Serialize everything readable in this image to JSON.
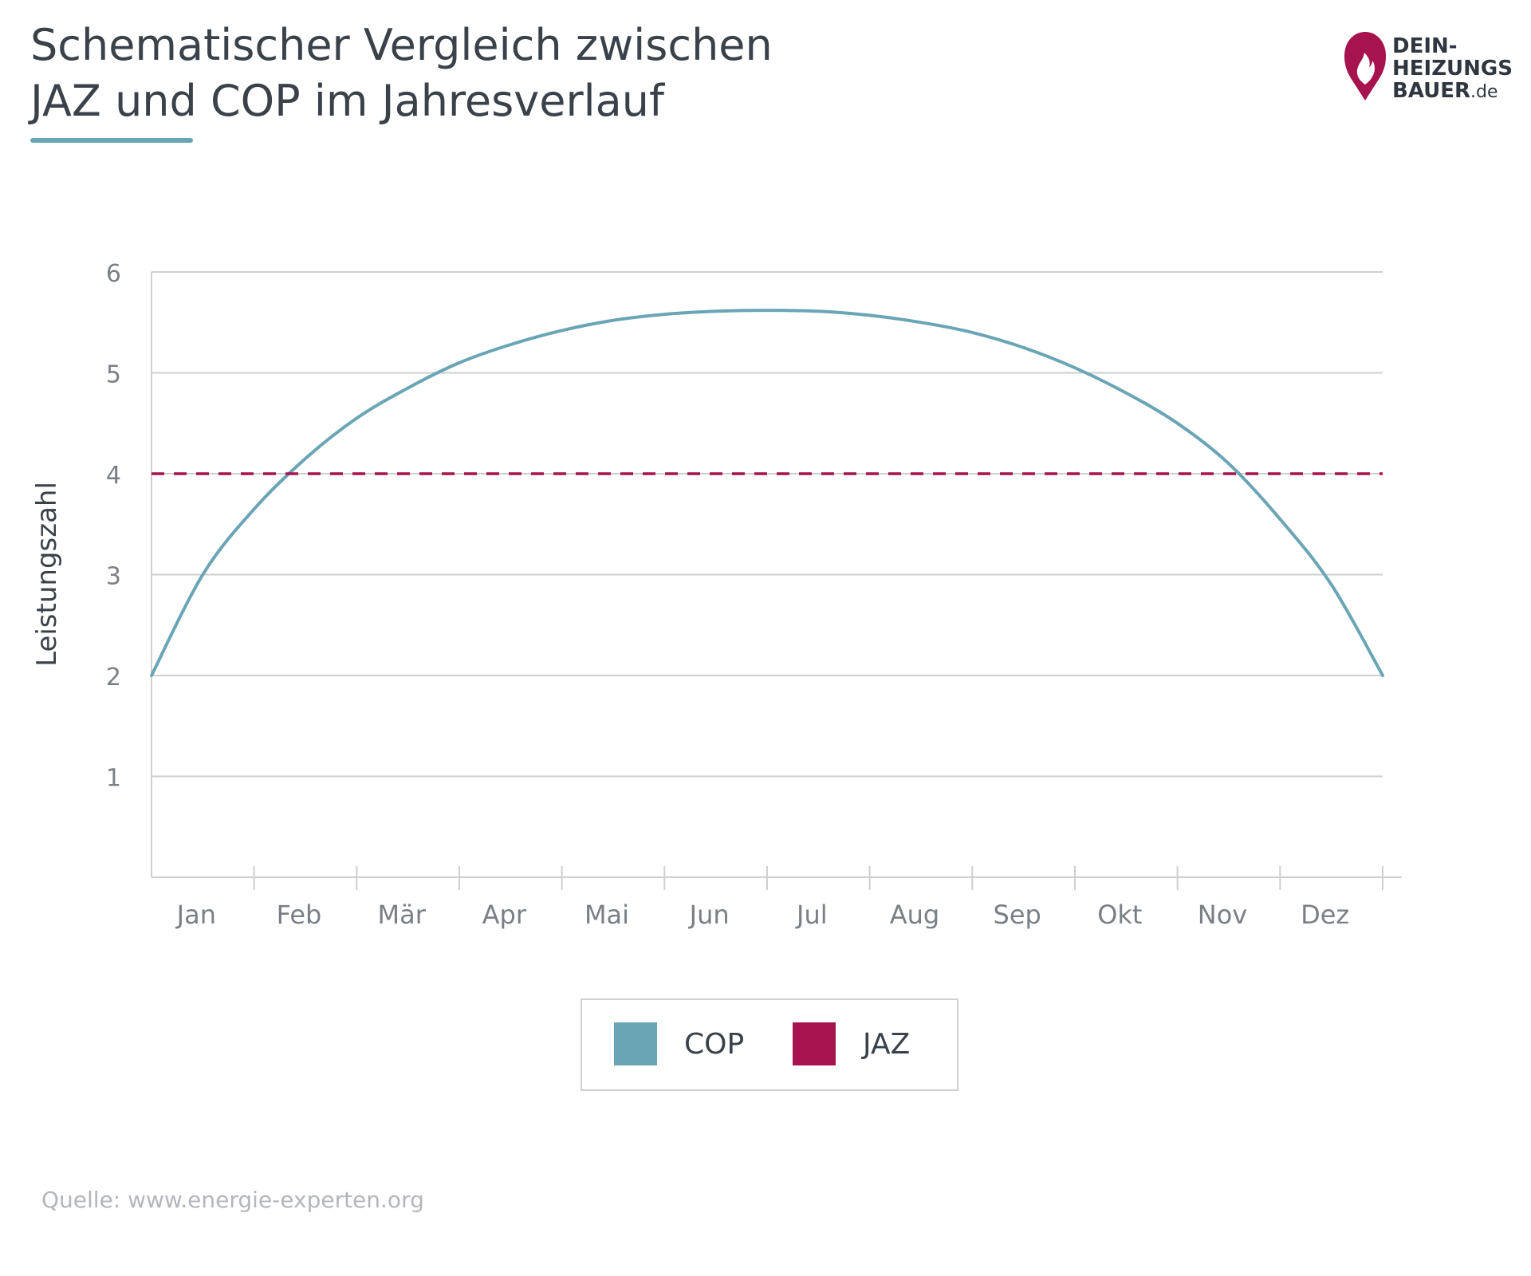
{
  "title": {
    "line1": "Schematischer Vergleich zwischen",
    "line2": "JAZ und COP im Jahresverlauf"
  },
  "logo": {
    "line1": "DEIN-",
    "line2": "HEIZUNGS",
    "line3": "BAUER",
    "suffix": ".de",
    "color": "#a6134e"
  },
  "source": "Quelle: www.energie-experten.org",
  "chart_data": {
    "type": "line",
    "title": "Schematischer Vergleich zwischen JAZ und COP im Jahresverlauf",
    "ylabel": "Leistungszahl",
    "xlabel": "",
    "ylim": [
      0,
      6
    ],
    "yticks": [
      1,
      2,
      3,
      4,
      5,
      6
    ],
    "categories": [
      "Jan",
      "Feb",
      "Mär",
      "Apr",
      "Mai",
      "Jun",
      "Jul",
      "Aug",
      "Sep",
      "Okt",
      "Nov",
      "Dez"
    ],
    "grid": true,
    "legend_position": "bottom",
    "series": [
      {
        "name": "COP",
        "style": "solid",
        "color": "#6aa5b5",
        "x": [
          0,
          0.5,
          1,
          1.5,
          2,
          2.5,
          3,
          3.5,
          4,
          4.5,
          5,
          5.5,
          6,
          6.5,
          7,
          7.5,
          8,
          8.5,
          9,
          9.5,
          10,
          10.5,
          11,
          11.5,
          12
        ],
        "y": [
          2.0,
          3.0,
          3.65,
          4.15,
          4.55,
          4.85,
          5.1,
          5.28,
          5.42,
          5.52,
          5.58,
          5.61,
          5.62,
          5.61,
          5.57,
          5.5,
          5.4,
          5.25,
          5.05,
          4.8,
          4.5,
          4.1,
          3.55,
          2.9,
          2.0
        ]
      },
      {
        "name": "JAZ",
        "style": "dashed",
        "color": "#a6134e",
        "x": [
          0,
          12
        ],
        "y": [
          4,
          4
        ]
      }
    ]
  },
  "colors": {
    "cop": "#6aa5b5",
    "jaz": "#a6134e",
    "grid": "#cfcfcf",
    "text": "#3a4149"
  }
}
